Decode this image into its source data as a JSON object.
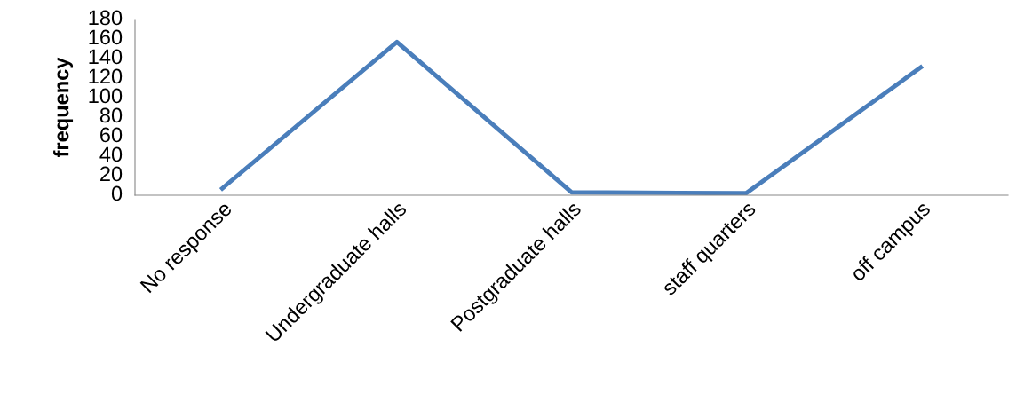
{
  "chart_data": {
    "type": "line",
    "ylabel": "frequency",
    "categories": [
      "No response",
      "Undergraduate halls",
      "Postgraduate halls",
      "staff quarters",
      "off campus"
    ],
    "series": [
      {
        "color": "#4a7ebb",
        "values": [
          7,
          157,
          3,
          2,
          131
        ]
      }
    ],
    "ylim": [
      0,
      180
    ],
    "yticks": [
      0,
      20,
      40,
      60,
      80,
      100,
      120,
      140,
      160,
      180
    ],
    "grid": false,
    "legend": false,
    "marker": "none",
    "line_style": "solid"
  }
}
